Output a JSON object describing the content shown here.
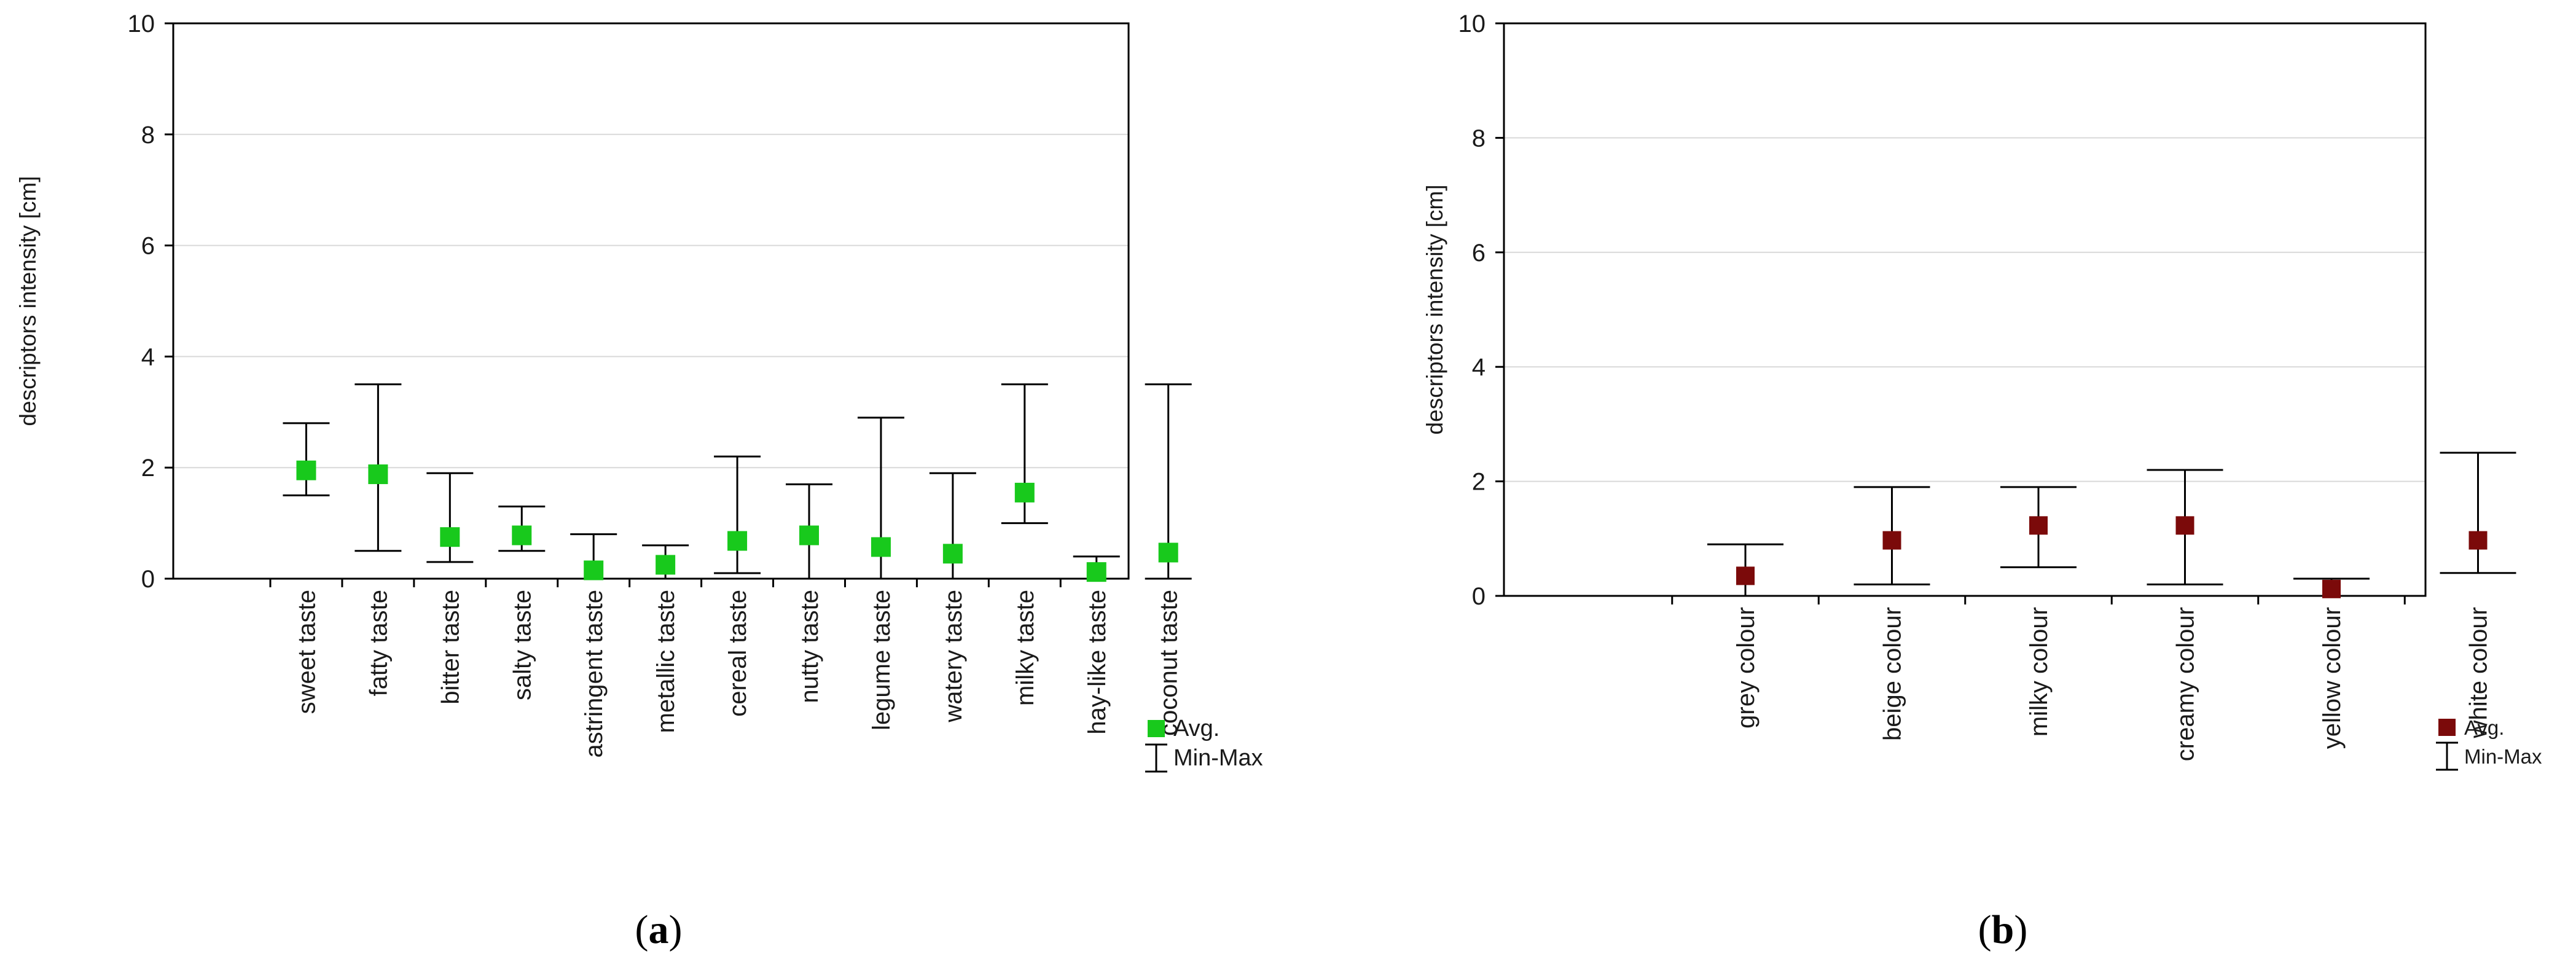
{
  "chart_data": [
    {
      "type": "scatter",
      "panel_label": "a",
      "ylabel": "descriptors intensity [cm]",
      "ylim": [
        0,
        10
      ],
      "yticks": [
        "0",
        "2",
        "4",
        "6",
        "8",
        "10"
      ],
      "categories": [
        "sweet taste",
        "fatty taste",
        "bitter taste",
        "salty taste",
        "astringent taste",
        "metallic taste",
        "cereal taste",
        "nutty taste",
        "legume taste",
        "watery taste",
        "milky taste",
        "hay-like taste",
        "coconut taste"
      ],
      "series": [
        {
          "name": "Avg.",
          "color": "#18c91c",
          "values": [
            1.95,
            1.88,
            0.75,
            0.78,
            0.15,
            0.25,
            0.68,
            0.78,
            0.57,
            0.45,
            1.55,
            0.12,
            0.47
          ]
        }
      ],
      "error_bars": {
        "name": "Min-Max",
        "min": [
          1.5,
          0.5,
          0.3,
          0.5,
          0.0,
          0.0,
          0.1,
          0.0,
          0.0,
          0.0,
          1.0,
          0.0,
          0.0
        ],
        "max": [
          2.8,
          3.5,
          1.9,
          1.3,
          0.8,
          0.6,
          2.2,
          1.7,
          2.9,
          1.9,
          3.5,
          0.4,
          3.5
        ]
      },
      "grid": true,
      "legend": "bottom-right"
    },
    {
      "type": "scatter",
      "panel_label": "b",
      "ylabel": "descriptors intensity [cm]",
      "ylim": [
        0,
        10
      ],
      "yticks": [
        "0",
        "2",
        "4",
        "6",
        "8",
        "10"
      ],
      "categories": [
        "grey colour",
        "beige colour",
        "milky colour",
        "creamy colour",
        "yellow colour",
        "white colour"
      ],
      "series": [
        {
          "name": "Avg.",
          "color": "#7b0a0a",
          "values": [
            0.35,
            0.97,
            1.23,
            1.23,
            0.12,
            0.97
          ]
        }
      ],
      "error_bars": {
        "name": "Min-Max",
        "min": [
          0.0,
          0.2,
          0.5,
          0.2,
          0.0,
          0.4
        ],
        "max": [
          0.9,
          1.9,
          1.9,
          2.2,
          0.3,
          2.5
        ]
      },
      "grid": true,
      "legend": "bottom-right"
    }
  ]
}
